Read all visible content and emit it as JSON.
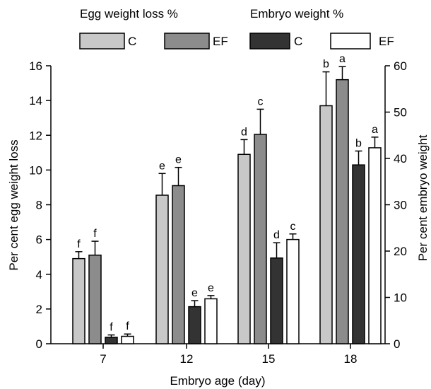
{
  "chart_data": {
    "type": "bar",
    "xlabel": "Embryo age (day)",
    "ylabel_left": "Per cent egg weight loss",
    "ylabel_right": "Per cent embryo weight",
    "ylim_left": [
      0,
      16
    ],
    "ylim_right": [
      0,
      60
    ],
    "yticks_left": [
      "0",
      "2",
      "4",
      "6",
      "8",
      "10",
      "12",
      "14",
      "16"
    ],
    "yticks_right": [
      "0",
      "10",
      "20",
      "30",
      "40",
      "50",
      "60"
    ],
    "categories": [
      "7",
      "12",
      "15",
      "18"
    ],
    "legend_groups": [
      "Egg weight loss %",
      "Embryo weight %"
    ],
    "grid": false,
    "legend_position": "top",
    "series": [
      {
        "name": "C",
        "group": "Egg weight loss %",
        "axis": "left",
        "color": "#c8c8c8",
        "values": [
          4.9,
          8.55,
          10.9,
          13.7
        ],
        "errors": [
          0.4,
          1.25,
          0.85,
          1.95
        ],
        "labels": [
          "f",
          "e",
          "d",
          "b"
        ]
      },
      {
        "name": "EF",
        "group": "Egg weight loss %",
        "axis": "left",
        "color": "#8c8c8c",
        "values": [
          5.1,
          9.1,
          12.05,
          15.2
        ],
        "errors": [
          0.8,
          1.05,
          1.45,
          0.75
        ],
        "labels": [
          "f",
          "e",
          "c",
          "a"
        ]
      },
      {
        "name": "C",
        "group": "Embryo weight %",
        "axis": "right",
        "color": "#333333",
        "values": [
          1.4,
          8.0,
          18.5,
          38.6
        ],
        "errors": [
          0.5,
          1.3,
          3.3,
          3.0
        ],
        "labels": [
          "f",
          "e",
          "d",
          "b"
        ]
      },
      {
        "name": "EF",
        "group": "Embryo weight %",
        "axis": "right",
        "color": "#ffffff",
        "values": [
          1.6,
          9.7,
          22.5,
          42.3
        ],
        "errors": [
          0.5,
          0.7,
          1.2,
          2.3
        ],
        "labels": [
          "f",
          "e",
          "c",
          "a"
        ]
      }
    ]
  }
}
